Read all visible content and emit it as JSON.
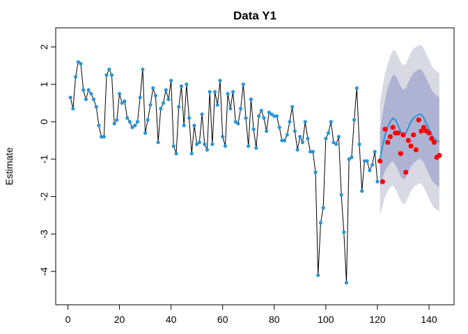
{
  "chart_data": {
    "type": "forecast",
    "title": "Data Y1",
    "y_label": "Estimate",
    "xlim": [
      -4.72,
      149.72
    ],
    "ylim": [
      -4.89,
      2.51
    ],
    "xticks": [
      0,
      20,
      40,
      60,
      80,
      100,
      120,
      140
    ],
    "yticks": [
      -4,
      -3,
      -2,
      -1,
      0,
      1,
      2
    ],
    "observed": {
      "color": "#2a94d6",
      "line_color": "#000000",
      "x": [
        1,
        2,
        3,
        4,
        5,
        6,
        7,
        8,
        9,
        10,
        11,
        12,
        13,
        14,
        15,
        16,
        17,
        18,
        19,
        20,
        21,
        22,
        23,
        24,
        25,
        26,
        27,
        28,
        29,
        30,
        31,
        32,
        33,
        34,
        35,
        36,
        37,
        38,
        39,
        40,
        41,
        42,
        43,
        44,
        45,
        46,
        47,
        48,
        49,
        50,
        51,
        52,
        53,
        54,
        55,
        56,
        57,
        58,
        59,
        60,
        61,
        62,
        63,
        64,
        65,
        66,
        67,
        68,
        69,
        70,
        71,
        72,
        73,
        74,
        75,
        76,
        77,
        78,
        79,
        80,
        81,
        82,
        83,
        84,
        85,
        86,
        87,
        88,
        89,
        90,
        91,
        92,
        93,
        94,
        95,
        96,
        97,
        98,
        99,
        100,
        101,
        102,
        103,
        104,
        105,
        106,
        107,
        108,
        109,
        110,
        111,
        112,
        113,
        114,
        115,
        116,
        117,
        118,
        119,
        120
      ],
      "values": [
        0.65,
        0.35,
        1.2,
        1.6,
        1.55,
        0.85,
        0.6,
        0.85,
        0.75,
        0.6,
        0.4,
        -0.1,
        -0.4,
        -0.4,
        1.25,
        1.4,
        1.25,
        -0.05,
        0.05,
        0.75,
        0.5,
        0.55,
        0.1,
        0.0,
        -0.15,
        -0.1,
        0.0,
        0.65,
        1.4,
        -0.3,
        0.05,
        0.45,
        0.9,
        0.7,
        -0.55,
        0.35,
        0.5,
        0.85,
        0.6,
        1.1,
        -0.65,
        -0.85,
        0.4,
        0.95,
        -0.1,
        1.0,
        0.1,
        -0.85,
        -0.1,
        -0.6,
        -0.55,
        0.2,
        -0.6,
        -0.75,
        0.8,
        -0.6,
        0.8,
        0.45,
        1.1,
        -0.4,
        -0.65,
        0.75,
        0.35,
        0.8,
        0.0,
        -0.05,
        0.35,
        1.0,
        0.1,
        -0.65,
        0.6,
        -0.2,
        -0.7,
        0.15,
        0.3,
        0.1,
        -0.25,
        0.25,
        0.2,
        0.15,
        0.15,
        -0.15,
        -0.5,
        -0.5,
        -0.35,
        0.0,
        0.4,
        -0.25,
        -0.75,
        -0.4,
        -0.55,
        0.0,
        -0.45,
        -0.8,
        -0.8,
        -1.35,
        -4.1,
        -2.7,
        -2.3,
        -0.45,
        -0.3,
        0.0,
        -0.55,
        -0.6,
        -0.4,
        -1.95,
        -2.95,
        -4.3,
        -1.0,
        -0.95,
        0.05,
        0.9,
        -0.6,
        -1.85,
        -1.05,
        -1.05,
        -1.3,
        -1.15,
        -0.8,
        -1.6
      ]
    },
    "forecast": {
      "color": "#2a94d6",
      "x": [
        121,
        122,
        123,
        124,
        125,
        126,
        127,
        128,
        129,
        130,
        131,
        132,
        133,
        134,
        135,
        136,
        137,
        138,
        139,
        140,
        141,
        142,
        143,
        144
      ],
      "values": [
        -1.0,
        -0.65,
        -0.35,
        -0.15,
        0.0,
        0.1,
        0.05,
        -0.1,
        -0.25,
        -0.35,
        -0.3,
        -0.15,
        0.0,
        0.1,
        0.15,
        0.2,
        0.2,
        0.1,
        -0.05,
        -0.2,
        -0.35,
        -0.45,
        -0.5,
        -0.55
      ]
    },
    "interval_95": {
      "color": "#d9d9e3",
      "lower": [
        -2.5,
        -2.25,
        -2.0,
        -1.85,
        -1.75,
        -1.7,
        -1.8,
        -1.95,
        -2.1,
        -2.2,
        -2.15,
        -2.0,
        -1.85,
        -1.75,
        -1.7,
        -1.65,
        -1.65,
        -1.75,
        -1.9,
        -2.05,
        -2.2,
        -2.3,
        -2.35,
        -2.4
      ],
      "upper": [
        0.5,
        0.95,
        1.3,
        1.55,
        1.75,
        1.9,
        1.9,
        1.75,
        1.6,
        1.5,
        1.55,
        1.7,
        1.85,
        1.95,
        2.0,
        2.05,
        2.05,
        1.95,
        1.8,
        1.65,
        1.5,
        1.4,
        1.35,
        1.3
      ]
    },
    "interval_80": {
      "color": "#aeb3d3",
      "lower": [
        -1.75,
        -1.5,
        -1.3,
        -1.2,
        -1.1,
        -1.05,
        -1.15,
        -1.3,
        -1.45,
        -1.55,
        -1.5,
        -1.35,
        -1.2,
        -1.1,
        -1.05,
        -1.0,
        -1.0,
        -1.1,
        -1.25,
        -1.4,
        -1.55,
        -1.65,
        -1.7,
        -1.75
      ],
      "upper": [
        -0.25,
        0.2,
        0.6,
        0.9,
        1.1,
        1.25,
        1.25,
        1.1,
        0.95,
        0.85,
        0.9,
        1.05,
        1.2,
        1.3,
        1.35,
        1.4,
        1.4,
        1.3,
        1.15,
        1.0,
        0.85,
        0.75,
        0.7,
        0.65
      ]
    },
    "test": {
      "color": "#ff0000",
      "x": [
        121,
        122,
        123,
        124,
        125,
        126,
        127,
        128,
        129,
        130,
        131,
        132,
        133,
        134,
        135,
        136,
        137,
        138,
        139,
        140,
        141,
        142,
        143,
        144
      ],
      "values": [
        -1.05,
        -1.6,
        -0.2,
        -0.55,
        -0.4,
        -0.15,
        -0.3,
        -0.3,
        -0.85,
        -0.35,
        -1.35,
        -0.5,
        -0.65,
        -0.35,
        -0.75,
        0.05,
        -0.25,
        -0.15,
        -0.25,
        -0.3,
        -0.45,
        -0.55,
        -0.95,
        -0.9
      ]
    }
  }
}
